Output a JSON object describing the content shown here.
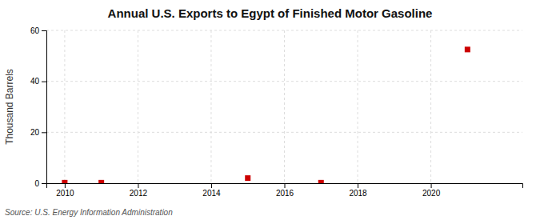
{
  "chart_data": {
    "type": "scatter",
    "title": "Annual U.S. Exports to Egypt of Finished Motor Gasoline",
    "y_label": "Thousand Barrels",
    "annotations": [
      "Source: U.S. Energy Information Administration"
    ],
    "x": [
      2010,
      2011,
      2015,
      2017,
      2021
    ],
    "values": [
      0.2,
      0.2,
      2.0,
      0.2,
      52.5
    ],
    "color": "#cc0000",
    "marker": "square",
    "xlim": [
      2009.5,
      2022.5
    ],
    "ylim": [
      0,
      60
    ],
    "xticks": [
      2010,
      2012,
      2014,
      2016,
      2018,
      2020
    ],
    "yticks": [
      0,
      20,
      40,
      60
    ],
    "grid": true
  }
}
